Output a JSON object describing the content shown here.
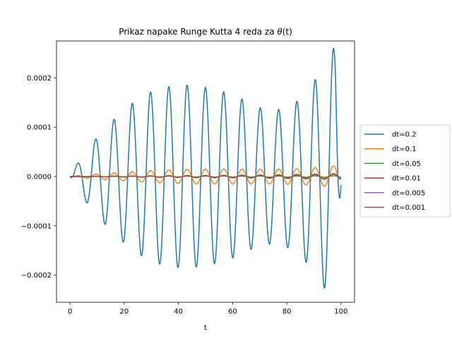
{
  "chart_data": {
    "type": "line",
    "title_prefix": "Prikaz napake Runge Kutta 4 reda za ",
    "title_math": "θ",
    "title_suffix": "(t)",
    "xlabel": "t",
    "ylabel": "",
    "xlim": [
      -5,
      105
    ],
    "ylim": [
      -0.000255,
      0.000275
    ],
    "xticks": [
      0,
      20,
      40,
      60,
      80,
      100
    ],
    "xtick_labels": [
      "0",
      "20",
      "40",
      "60",
      "80",
      "100"
    ],
    "yticks": [
      -0.0002,
      -0.0001,
      0.0,
      0.0001,
      0.0002
    ],
    "ytick_labels": [
      "−0.0002",
      "−0.0001",
      "0.0000",
      "0.0001",
      "0.0002"
    ],
    "grid": false,
    "legend_position": "right, outside the axes",
    "series": [
      {
        "name": "dt=0.2",
        "color": "#1f77b4",
        "period": 6.75,
        "phase": 0.95,
        "envelope": [
          [
            0,
            0
          ],
          [
            2,
            2e-05
          ],
          [
            5,
            4.5e-05
          ],
          [
            8.5,
            7e-05
          ],
          [
            15,
            0.00011
          ],
          [
            22,
            0.000145
          ],
          [
            29,
            0.00017
          ],
          [
            35.5,
            0.000182
          ],
          [
            42,
            0.000186
          ],
          [
            49,
            0.000182
          ],
          [
            56,
            0.000173
          ],
          [
            62.5,
            0.00016
          ],
          [
            69.5,
            0.00014
          ],
          [
            76.5,
            0.000135
          ],
          [
            84,
            0.000153
          ],
          [
            91,
            0.0002
          ],
          [
            94.5,
            0.000232
          ],
          [
            98,
            0.000268
          ],
          [
            100,
            2e-05
          ]
        ]
      },
      {
        "name": "dt=0.1",
        "color": "#ff7f0e",
        "period": 6.75,
        "phase": 0.95,
        "envelope": [
          [
            0,
            0
          ],
          [
            5,
            3e-06
          ],
          [
            15,
            7e-06
          ],
          [
            30,
            1.2e-05
          ],
          [
            45,
            1.5e-05
          ],
          [
            60,
            1.5e-05
          ],
          [
            75,
            1.5e-05
          ],
          [
            85,
            1.6e-05
          ],
          [
            95,
            2e-05
          ],
          [
            98,
            2.2e-05
          ],
          [
            100,
            5e-06
          ]
        ]
      },
      {
        "name": "dt=0.05",
        "color": "#2ca02c",
        "period": 6.75,
        "phase": 0.95,
        "envelope": [
          [
            0,
            0
          ],
          [
            30,
            8e-07
          ],
          [
            70,
            1e-06
          ],
          [
            100,
            1.5e-06
          ]
        ]
      },
      {
        "name": "dt=0.01",
        "color": "#d62728",
        "period": 6.75,
        "phase": 0.95,
        "envelope": [
          [
            0,
            0
          ],
          [
            30,
            1e-06
          ],
          [
            70,
            2.5e-06
          ],
          [
            90,
            4e-06
          ],
          [
            100,
            5e-06
          ]
        ]
      },
      {
        "name": "dt=0.005",
        "color": "#9467bd",
        "period": 6.75,
        "phase": 0.95,
        "envelope": [
          [
            0,
            0
          ],
          [
            30,
            1.5e-06
          ],
          [
            70,
            3e-06
          ],
          [
            90,
            5e-06
          ],
          [
            100,
            6e-06
          ]
        ]
      },
      {
        "name": "dt=0.001",
        "color": "#8c564b",
        "period": 6.75,
        "phase": 0.95,
        "envelope": [
          [
            0,
            0
          ],
          [
            30,
            1.5e-06
          ],
          [
            70,
            3e-06
          ],
          [
            90,
            5e-06
          ],
          [
            100,
            6e-06
          ]
        ]
      }
    ]
  }
}
